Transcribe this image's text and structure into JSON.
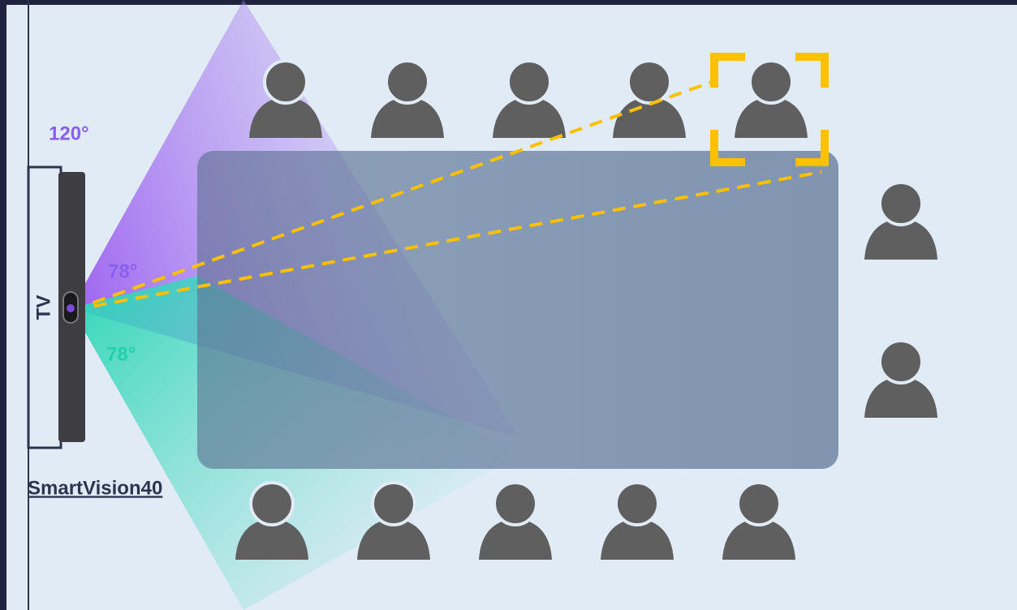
{
  "labels": {
    "fov_total": "120°",
    "fov_upper": "78°",
    "fov_lower": "78°",
    "tv": "TV",
    "device": "SmartVision40"
  }
}
